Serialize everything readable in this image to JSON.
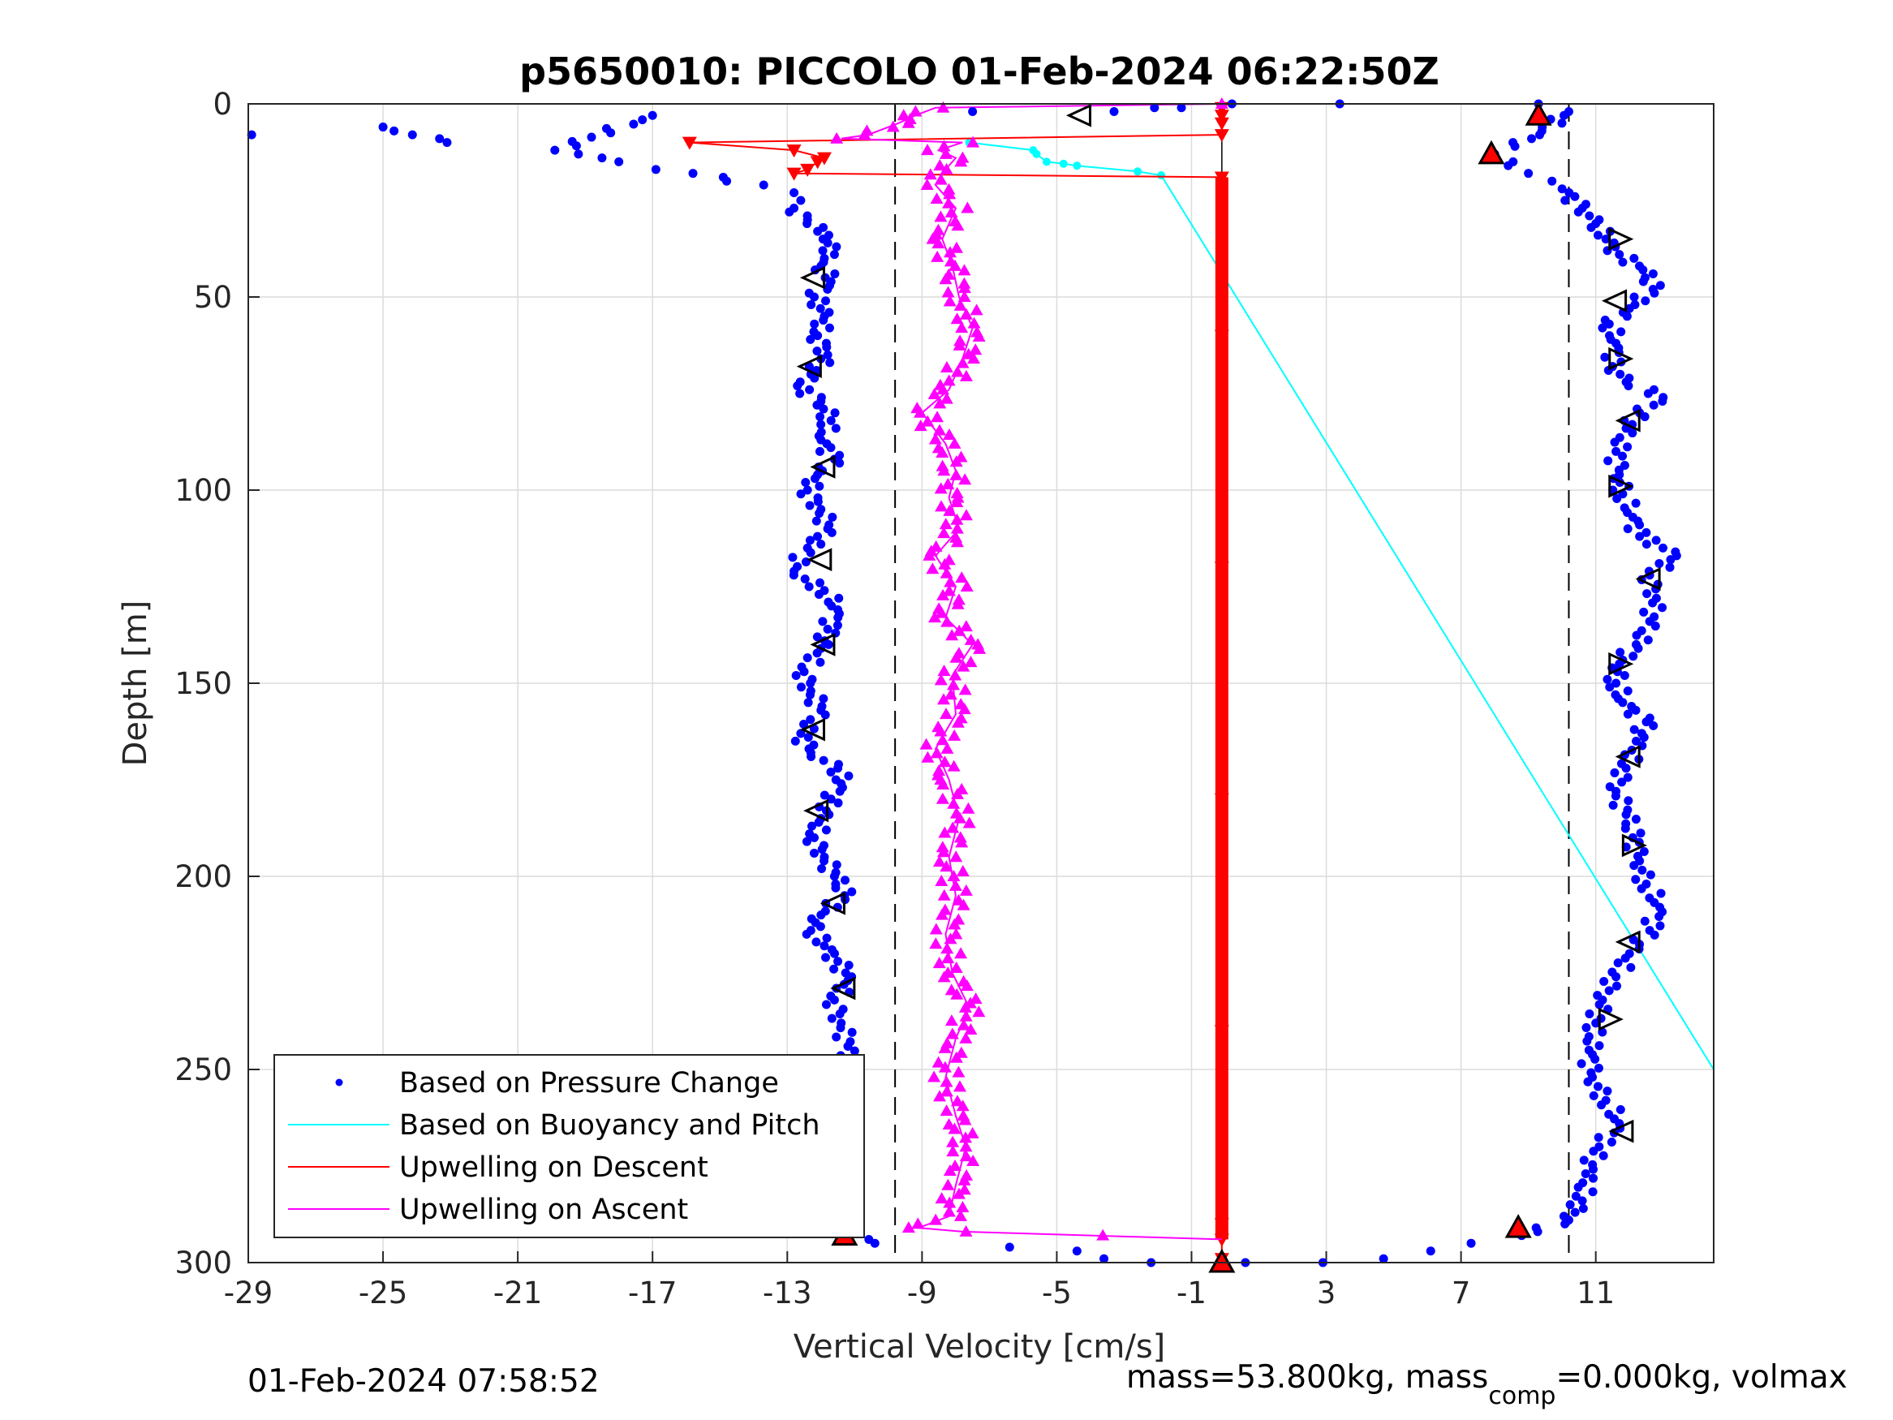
{
  "chart_data": {
    "type": "scatter",
    "title": "p5650010: PICCOLO 01-Feb-2024 06:22:50Z",
    "xlabel": "Vertical Velocity [cm/s]",
    "ylabel": "Depth [m]",
    "xlim": [
      -29,
      14.5
    ],
    "ylim": [
      0,
      300
    ],
    "y_reversed": true,
    "grid": true,
    "x_ticks": [
      "-29",
      "-25",
      "-21",
      "-17",
      "-13",
      "-9",
      "-5",
      "-1",
      "3",
      "7",
      "11"
    ],
    "y_ticks": [
      "0",
      "50",
      "100",
      "150",
      "200",
      "250",
      "300"
    ],
    "reference_lines": {
      "velocity_limits": [
        -9.8,
        10.2
      ],
      "zero_line": -0.1
    },
    "legend_position": "bottom-left",
    "legend": [
      {
        "label": "Based on Pressure Change",
        "color": "#0000ff",
        "marker": "dot"
      },
      {
        "label": "Based on Buoyancy and Pitch",
        "color": "#00ffff",
        "marker": "line"
      },
      {
        "label": "Upwelling on Descent",
        "color": "#ff0000",
        "marker": "line"
      },
      {
        "label": "Upwelling on Ascent",
        "color": "#ff00ff",
        "marker": "line"
      }
    ],
    "series": [
      {
        "name": "Based on Buoyancy and Pitch",
        "color": "#00ffff",
        "points": [
          [
            -7.6,
            10
          ],
          [
            -5.7,
            12
          ],
          [
            -5.6,
            13
          ],
          [
            -5.3,
            15
          ],
          [
            -4.8,
            15.5
          ],
          [
            -4.4,
            16
          ],
          [
            -2.6,
            17.5
          ],
          [
            -1.9,
            18.5
          ],
          [
            14.5,
            250
          ]
        ]
      },
      {
        "name": "Upwelling on Descent",
        "color": "#ff0000",
        "points": [
          [
            -0.1,
            1
          ],
          [
            -0.1,
            3
          ],
          [
            -0.1,
            5
          ],
          [
            -0.1,
            8
          ],
          [
            -15.9,
            10
          ],
          [
            -12.8,
            12
          ],
          [
            -11.9,
            14
          ],
          [
            -12.1,
            15
          ],
          [
            -12.4,
            17
          ],
          [
            -12.8,
            18
          ],
          [
            -0.1,
            19
          ],
          [
            -0.1,
            60
          ],
          [
            -0.1,
            120
          ],
          [
            -0.1,
            180
          ],
          [
            -0.1,
            240
          ],
          [
            -0.1,
            290
          ],
          [
            -0.1,
            294
          ],
          [
            -0.1,
            299
          ]
        ],
        "dense_segment": {
          "x": -0.1,
          "from": 19,
          "to": 294
        }
      },
      {
        "name": "Upwelling on Ascent",
        "color": "#ff00ff",
        "points": [
          [
            -0.1,
            0
          ],
          [
            -8.6,
            1
          ],
          [
            -9.2,
            3
          ],
          [
            -9.7,
            5
          ],
          [
            -10.6,
            8
          ],
          [
            -11.4,
            9
          ],
          [
            -7.8,
            10
          ],
          [
            -8.5,
            12
          ],
          [
            -8.0,
            14
          ],
          [
            -8.3,
            17
          ],
          [
            -8.6,
            21
          ],
          [
            -8.0,
            27
          ],
          [
            -8.4,
            35
          ],
          [
            -8.1,
            42
          ],
          [
            -7.9,
            50
          ],
          [
            -7.5,
            58
          ],
          [
            -7.8,
            66
          ],
          [
            -8.2,
            74
          ],
          [
            -9.0,
            80
          ],
          [
            -8.3,
            88
          ],
          [
            -8.0,
            95
          ],
          [
            -8.2,
            102
          ],
          [
            -7.9,
            110
          ],
          [
            -8.6,
            117
          ],
          [
            -8.0,
            125
          ],
          [
            -8.3,
            133
          ],
          [
            -7.5,
            140
          ],
          [
            -8.1,
            148
          ],
          [
            -8.0,
            158
          ],
          [
            -8.6,
            167
          ],
          [
            -8.2,
            175
          ],
          [
            -7.9,
            185
          ],
          [
            -8.2,
            195
          ],
          [
            -8.0,
            205
          ],
          [
            -8.3,
            215
          ],
          [
            -8.1,
            225
          ],
          [
            -7.6,
            234
          ],
          [
            -8.0,
            242
          ],
          [
            -8.3,
            252
          ],
          [
            -8.0,
            262
          ],
          [
            -7.7,
            270
          ],
          [
            -8.0,
            280
          ],
          [
            -8.2,
            288
          ],
          [
            -9.1,
            291
          ],
          [
            -7.8,
            292
          ],
          [
            -0.1,
            294
          ]
        ]
      },
      {
        "name": "Based on Pressure Change",
        "color": "#0000ff",
        "points": [
          [
            -28.9,
            8
          ],
          [
            -25,
            6
          ],
          [
            -23.1,
            10
          ],
          [
            -17,
            3
          ],
          [
            -19.9,
            12
          ],
          [
            -19.2,
            13
          ],
          [
            -18.5,
            14
          ],
          [
            -18,
            15
          ],
          [
            -16.9,
            17
          ],
          [
            -15.8,
            18
          ],
          [
            -14.9,
            19
          ],
          [
            -14.8,
            20
          ],
          [
            -13.7,
            21
          ],
          [
            -12.8,
            23
          ],
          [
            -12.6,
            25
          ],
          [
            -12.8,
            27
          ],
          [
            -12.4,
            30
          ],
          [
            -12.1,
            33
          ],
          [
            -11.8,
            36
          ],
          [
            -11.6,
            39
          ],
          [
            -12.0,
            42
          ],
          [
            -11.7,
            46
          ],
          [
            -12.2,
            50
          ],
          [
            -11.9,
            55
          ],
          [
            -12.1,
            60
          ],
          [
            -11.8,
            65
          ],
          [
            -12.3,
            70
          ],
          [
            -12.7,
            73
          ],
          [
            -12.0,
            77
          ],
          [
            -11.7,
            82
          ],
          [
            -12.0,
            87
          ],
          [
            -11.6,
            92
          ],
          [
            -12.1,
            96
          ],
          [
            -12.4,
            100
          ],
          [
            -12.0,
            105
          ],
          [
            -11.8,
            110
          ],
          [
            -12.4,
            115
          ],
          [
            -12.8,
            121
          ],
          [
            -11.9,
            126
          ],
          [
            -11.5,
            131
          ],
          [
            -11.8,
            136
          ],
          [
            -12.0,
            141
          ],
          [
            -12.5,
            147
          ],
          [
            -12.3,
            152
          ],
          [
            -12.0,
            157
          ],
          [
            -12.6,
            163
          ],
          [
            -12.3,
            168
          ],
          [
            -11.5,
            172
          ],
          [
            -11.4,
            176
          ],
          [
            -11.7,
            180
          ],
          [
            -12.0,
            185
          ],
          [
            -12.2,
            190
          ],
          [
            -11.9,
            195
          ],
          [
            -11.6,
            200
          ],
          [
            -11.3,
            205
          ],
          [
            -12.0,
            210
          ],
          [
            -12.3,
            214
          ],
          [
            -11.9,
            218
          ],
          [
            -11.5,
            222
          ],
          [
            -11.2,
            227
          ],
          [
            -11.6,
            232
          ],
          [
            -11.4,
            238
          ],
          [
            -11.2,
            244
          ],
          [
            -11.5,
            250
          ],
          [
            -11.9,
            256
          ],
          [
            -11.3,
            262
          ],
          [
            -11.1,
            268
          ],
          [
            -11.3,
            274
          ],
          [
            -11.0,
            280
          ],
          [
            -11.4,
            286
          ],
          [
            -11.9,
            290
          ],
          [
            -10.4,
            295
          ],
          [
            -6.4,
            296
          ],
          [
            -4.4,
            297
          ],
          [
            -3.6,
            299
          ],
          [
            -2.2,
            300
          ],
          [
            0.6,
            300
          ],
          [
            2.9,
            300
          ],
          [
            4.7,
            299
          ],
          [
            6.1,
            297
          ],
          [
            7.3,
            295
          ],
          [
            8.8,
            293
          ],
          [
            10.2,
            289
          ],
          [
            10.6,
            284
          ],
          [
            10.7,
            277
          ],
          [
            11.1,
            270
          ],
          [
            11.7,
            264
          ],
          [
            11.3,
            258
          ],
          [
            10.9,
            252
          ],
          [
            10.8,
            245
          ],
          [
            11.0,
            238
          ],
          [
            11.2,
            232
          ],
          [
            11.6,
            226
          ],
          [
            12.0,
            220
          ],
          [
            12.6,
            214
          ],
          [
            12.9,
            208
          ],
          [
            12.5,
            202
          ],
          [
            12.3,
            196
          ],
          [
            12.1,
            190
          ],
          [
            11.9,
            184
          ],
          [
            11.6,
            178
          ],
          [
            11.9,
            172
          ],
          [
            12.2,
            165
          ],
          [
            12.5,
            160
          ],
          [
            11.8,
            155
          ],
          [
            11.6,
            150
          ],
          [
            11.7,
            145
          ],
          [
            12.2,
            140
          ],
          [
            12.6,
            134
          ],
          [
            12.8,
            128
          ],
          [
            12.6,
            122
          ],
          [
            13.4,
            117
          ],
          [
            12.3,
            112
          ],
          [
            12.1,
            107
          ],
          [
            11.8,
            101
          ],
          [
            11.7,
            96
          ],
          [
            11.6,
            90
          ],
          [
            11.9,
            84
          ],
          [
            12.3,
            80
          ],
          [
            13.0,
            76
          ],
          [
            11.9,
            72
          ],
          [
            11.5,
            68
          ],
          [
            11.6,
            62
          ],
          [
            11.4,
            57
          ],
          [
            12.0,
            53
          ],
          [
            12.7,
            48
          ],
          [
            12.4,
            43
          ],
          [
            11.7,
            39
          ],
          [
            11.3,
            35
          ],
          [
            11.0,
            31
          ],
          [
            10.6,
            27
          ],
          [
            10.0,
            22
          ],
          [
            9.7,
            20
          ],
          [
            9.0,
            18
          ],
          [
            8.4,
            16
          ],
          [
            8.0,
            13
          ],
          [
            8.6,
            11
          ],
          [
            9.4,
            7
          ],
          [
            10.2,
            2
          ],
          [
            9.3,
            0
          ],
          [
            3.4,
            0
          ],
          [
            0.2,
            0
          ],
          [
            -1.3,
            1
          ],
          [
            -2.1,
            1
          ],
          [
            -3.3,
            2
          ],
          [
            -7.5,
            2
          ]
        ]
      },
      {
        "name": "ascent markers",
        "marker": "triangle-right",
        "points": [
          [
            11.7,
            35
          ],
          [
            11.7,
            66
          ],
          [
            11.7,
            99
          ],
          [
            11.7,
            145
          ],
          [
            12.1,
            192
          ],
          [
            11.4,
            237
          ]
        ]
      },
      {
        "name": "descent markers",
        "marker": "triangle-left",
        "points": [
          [
            -4.3,
            3
          ],
          [
            -12.2,
            45
          ],
          [
            -12.3,
            68
          ],
          [
            -11.9,
            94
          ],
          [
            -12.0,
            118
          ],
          [
            -11.9,
            140
          ],
          [
            -12.2,
            162
          ],
          [
            -12.1,
            183
          ],
          [
            -11.6,
            207
          ],
          [
            -11.3,
            229
          ],
          [
            -11.5,
            253
          ],
          [
            -11.3,
            282
          ],
          [
            11.6,
            51
          ],
          [
            12.0,
            82
          ],
          [
            12.6,
            123
          ],
          [
            12.0,
            169
          ],
          [
            12.0,
            217
          ],
          [
            11.8,
            266
          ]
        ]
      },
      {
        "name": "filled markers",
        "marker": "triangle-up",
        "points": [
          [
            9.3,
            3
          ],
          [
            7.9,
            13
          ],
          [
            8.7,
            291
          ],
          [
            -11.3,
            293
          ],
          [
            -0.1,
            300
          ]
        ]
      }
    ]
  },
  "footer": {
    "timestamp": "01-Feb-2024 07:58:52",
    "mass_text_1": "mass=53.800kg, mass",
    "mass_sub": "comp",
    "mass_text_2": "=0.000kg, volmax"
  }
}
